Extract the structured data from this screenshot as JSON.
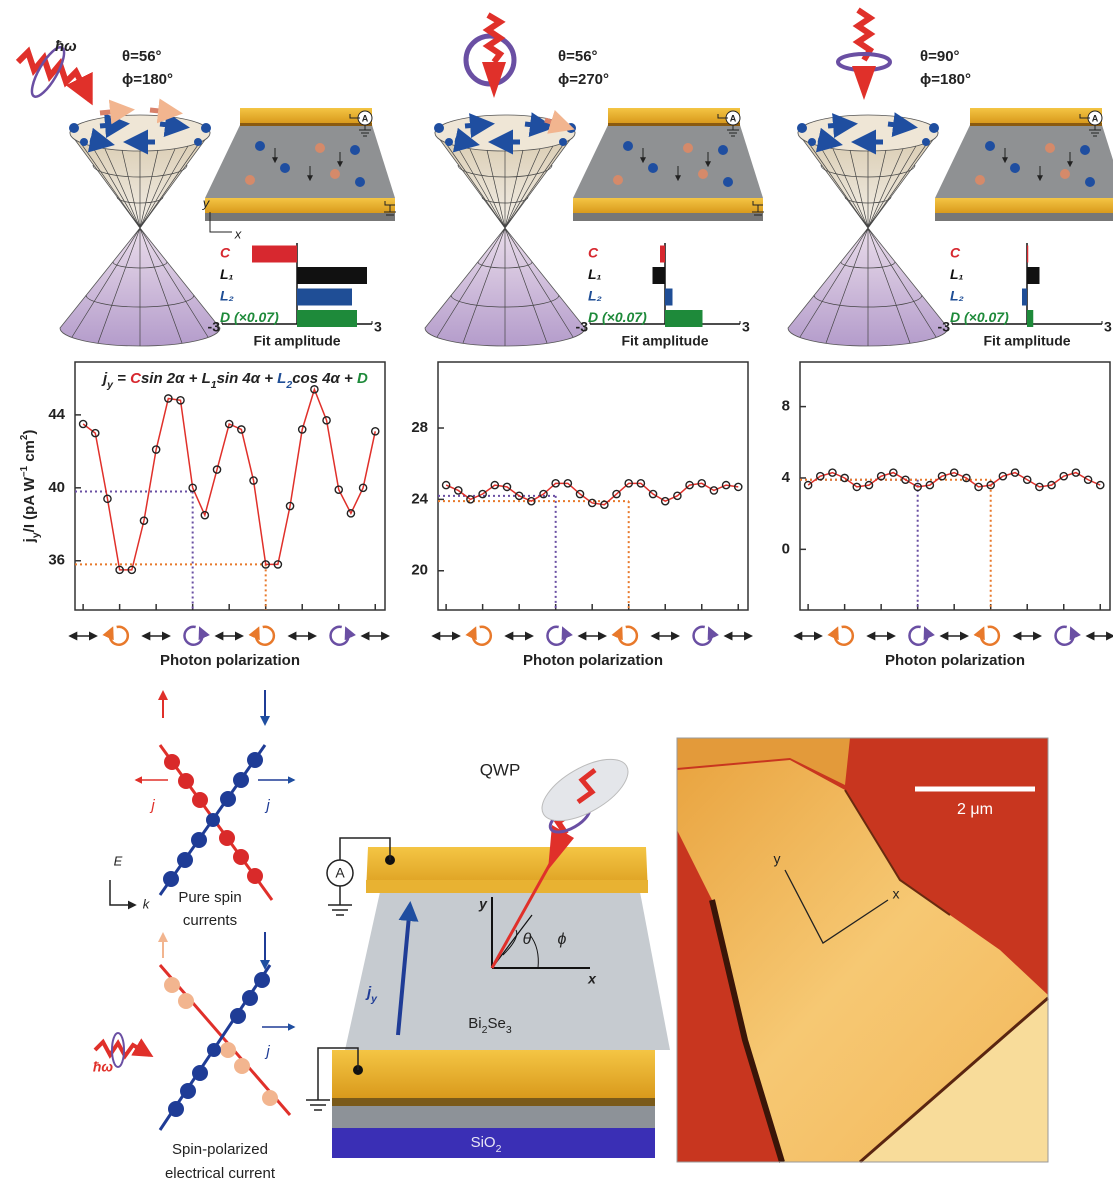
{
  "panels": [
    {
      "photon": "ħω",
      "theta": "θ=56°",
      "phi": "ϕ=180°",
      "ammeter": "A",
      "axis_y": "y",
      "axis_x": "x"
    },
    {
      "theta": "θ=56°",
      "phi": "ϕ=270°",
      "ammeter": "A"
    },
    {
      "theta": "θ=90°",
      "phi": "ϕ=180°",
      "ammeter": "A"
    }
  ],
  "chart_data": [
    {
      "type": "bar",
      "horizontal": true,
      "categories": [
        "C",
        "L₁",
        "L₂",
        "D (×0.07)"
      ],
      "values": [
        -1.8,
        2.8,
        2.2,
        2.4
      ],
      "colors": [
        "#d7282f",
        "#111111",
        "#1f4e96",
        "#1e8a3a"
      ],
      "xlim": [
        -3,
        3
      ],
      "xticks": [
        -3,
        3
      ],
      "x_label": "Fit amplitude"
    },
    {
      "type": "bar",
      "horizontal": true,
      "categories": [
        "C",
        "L₁",
        "L₂",
        "D (×0.07)"
      ],
      "values": [
        -0.2,
        -0.5,
        0.3,
        1.5
      ],
      "colors": [
        "#d7282f",
        "#111111",
        "#1f4e96",
        "#1e8a3a"
      ],
      "xlim": [
        -3,
        3
      ],
      "xticks": [
        -3,
        3
      ],
      "x_label": "Fit amplitude"
    },
    {
      "type": "bar",
      "horizontal": true,
      "categories": [
        "C",
        "L₁",
        "L₂",
        "D (×0.07)"
      ],
      "values": [
        0.05,
        0.5,
        -0.2,
        0.25
      ],
      "colors": [
        "#d7282f",
        "#111111",
        "#1f4e96",
        "#1e8a3a"
      ],
      "xlim": [
        -3,
        3
      ],
      "xticks": [
        -3,
        3
      ],
      "x_label": "Fit amplitude"
    },
    {
      "type": "line",
      "x": [
        0,
        15,
        30,
        45,
        60,
        75,
        90,
        105,
        120,
        135,
        150,
        165,
        180,
        195,
        210,
        225,
        240,
        255,
        270,
        285,
        300,
        315,
        330,
        345,
        360
      ],
      "values": [
        43.5,
        43.0,
        39.4,
        35.5,
        35.5,
        38.2,
        42.1,
        44.9,
        44.8,
        40.0,
        38.5,
        41.0,
        43.5,
        43.2,
        40.4,
        35.8,
        35.8,
        39.0,
        43.2,
        45.4,
        43.7,
        39.9,
        38.6,
        40.0,
        43.1
      ],
      "line_color": "#e0302a",
      "marker_color": "#222222",
      "xlim": [
        -10,
        372
      ],
      "ylim": [
        33.3,
        46.9
      ],
      "yticks": [
        36,
        40,
        44
      ],
      "xticks": [
        0,
        45,
        90,
        135,
        180,
        225,
        270,
        315,
        360
      ],
      "xtick_icons": [
        "linear",
        "right",
        "linear",
        "left",
        "linear",
        "right",
        "linear",
        "left",
        "linear"
      ],
      "icon_colors": {
        "linear": "#222222",
        "right": "#e8792b",
        "left": "#6a4fa3"
      },
      "ref_lines": [
        {
          "x": 135,
          "y": 39.8,
          "color": "#6a4fa3"
        },
        {
          "x": 225,
          "y": 35.8,
          "color": "#e8792b"
        }
      ],
      "x_label": "Photon polarization",
      "y_label": [
        {
          "text": "j"
        },
        {
          "text": "y",
          "sub": true
        },
        {
          "text": "/I (pA W"
        },
        {
          "text": "−1",
          "sup": true
        },
        {
          "text": " cm"
        },
        {
          "text": "2",
          "sup": true
        },
        {
          "text": ")"
        }
      ],
      "equation": [
        {
          "text": "j"
        },
        {
          "text": "y",
          "sub": true
        },
        {
          "text": " = "
        },
        {
          "text": "C",
          "color": "#d7282f"
        },
        {
          "text": "sin 2α + "
        },
        {
          "text": "L"
        },
        {
          "text": "1",
          "sub": true
        },
        {
          "text": "sin 4α + "
        },
        {
          "text": "L",
          "color": "#1f4e96"
        },
        {
          "text": "2",
          "sub": true,
          "color": "#1f4e96"
        },
        {
          "text": "cos 4α + "
        },
        {
          "text": "D",
          "color": "#1e8a3a"
        }
      ]
    },
    {
      "type": "line",
      "x": [
        0,
        15,
        30,
        45,
        60,
        75,
        90,
        105,
        120,
        135,
        150,
        165,
        180,
        195,
        210,
        225,
        240,
        255,
        270,
        285,
        300,
        315,
        330,
        345,
        360
      ],
      "values": [
        24.8,
        24.5,
        24.0,
        24.3,
        24.8,
        24.7,
        24.2,
        23.9,
        24.3,
        24.9,
        24.9,
        24.3,
        23.8,
        23.7,
        24.3,
        24.9,
        24.9,
        24.3,
        23.9,
        24.2,
        24.8,
        24.9,
        24.5,
        24.8,
        24.7
      ],
      "line_color": "#e0302a",
      "marker_color": "#222222",
      "xlim": [
        -10,
        372
      ],
      "ylim": [
        17.8,
        31.7
      ],
      "yticks": [
        20,
        24,
        28
      ],
      "xticks": [
        0,
        45,
        90,
        135,
        180,
        225,
        270,
        315,
        360
      ],
      "xtick_icons": [
        "linear",
        "right",
        "linear",
        "left",
        "linear",
        "right",
        "linear",
        "left",
        "linear"
      ],
      "icon_colors": {
        "linear": "#222222",
        "right": "#e8792b",
        "left": "#6a4fa3"
      },
      "ref_lines": [
        {
          "x": 135,
          "y": 24.2,
          "color": "#6a4fa3"
        },
        {
          "x": 225,
          "y": 23.9,
          "color": "#e8792b"
        }
      ],
      "x_label": "Photon polarization"
    },
    {
      "type": "line",
      "x": [
        0,
        15,
        30,
        45,
        60,
        75,
        90,
        105,
        120,
        135,
        150,
        165,
        180,
        195,
        210,
        225,
        240,
        255,
        270,
        285,
        300,
        315,
        330,
        345,
        360
      ],
      "values": [
        3.6,
        4.1,
        4.3,
        4.0,
        3.5,
        3.6,
        4.1,
        4.3,
        3.9,
        3.5,
        3.6,
        4.1,
        4.3,
        4.0,
        3.5,
        3.6,
        4.1,
        4.3,
        3.9,
        3.5,
        3.6,
        4.1,
        4.3,
        3.9,
        3.6
      ],
      "line_color": "#e0302a",
      "marker_color": "#222222",
      "xlim": [
        -10,
        372
      ],
      "ylim": [
        -3.4,
        10.5
      ],
      "yticks": [
        0,
        4,
        8
      ],
      "xticks": [
        0,
        45,
        90,
        135,
        180,
        225,
        270,
        315,
        360
      ],
      "xtick_icons": [
        "linear",
        "right",
        "linear",
        "left",
        "linear",
        "right",
        "linear",
        "left",
        "linear"
      ],
      "icon_colors": {
        "linear": "#222222",
        "right": "#e8792b",
        "left": "#6a4fa3"
      },
      "ref_lines": [
        {
          "x": 135,
          "y": 3.9,
          "color": "#6a4fa3"
        },
        {
          "x": 225,
          "y": 3.9,
          "color": "#e8792b"
        }
      ],
      "x_label": "Photon polarization"
    }
  ],
  "spin_diagram": {
    "top_j_left": "j",
    "top_j_right": "j",
    "energy_axis": "E",
    "momentum_axis": "k",
    "top_caption": [
      "Pure spin",
      "currents"
    ],
    "photon": "ħω",
    "bottom_j": "j",
    "bottom_caption": [
      "Spin-polarized",
      "electrical current"
    ]
  },
  "device": {
    "qwp": "QWP",
    "ammeter": "A",
    "axis_y": "y",
    "axis_x": "x",
    "theta": "θ",
    "phi": "ϕ",
    "current": [
      {
        "text": "j"
      },
      {
        "text": "y",
        "sub": true
      }
    ],
    "channel": [
      {
        "text": "Bi"
      },
      {
        "text": "2",
        "sub": true
      },
      {
        "text": "Se"
      },
      {
        "text": "3",
        "sub": true
      }
    ],
    "substrate": [
      {
        "text": "SiO"
      },
      {
        "text": "2",
        "sub": true
      }
    ]
  },
  "afm_image": {
    "scale_bar": "2 μm",
    "axis_y": "y",
    "axis_x": "x"
  }
}
